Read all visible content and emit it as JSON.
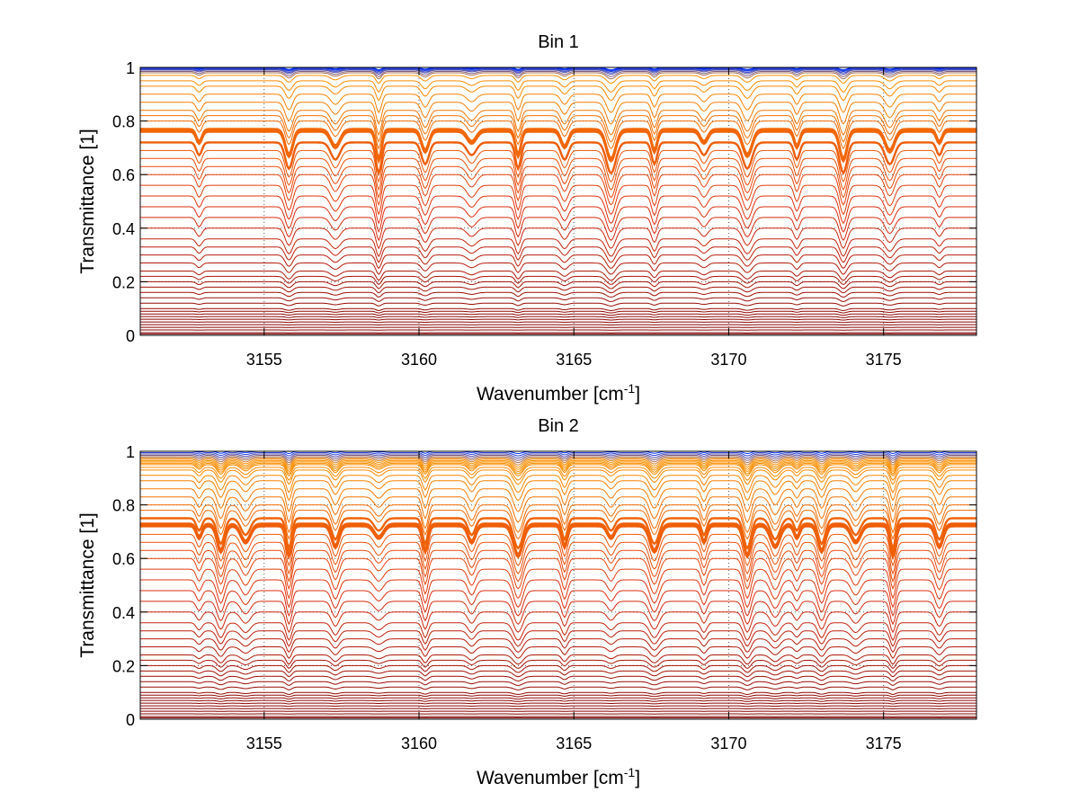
{
  "chart_data": [
    {
      "type": "line",
      "title": "Bin 1",
      "xlabel": "Wavenumber [cm",
      "xlabel_sup": "-1",
      "xlabel_end": "]",
      "ylabel": "Transmittance [1]",
      "xlim": [
        3151,
        3178
      ],
      "ylim": [
        0,
        1
      ],
      "xticks": [
        3155,
        3160,
        3165,
        3170,
        3175
      ],
      "xtick_labels": [
        "3155",
        "3160",
        "3165",
        "3170",
        "3175"
      ],
      "yticks": [
        0,
        0.2,
        0.4,
        0.6,
        0.8,
        1
      ],
      "ytick_labels": [
        "0",
        "0.2",
        "0.4",
        "0.6",
        "0.8",
        "1"
      ],
      "grid": "dotted",
      "absorption_lines": [
        3152.9,
        3155.8,
        3157.3,
        3158.7,
        3160.2,
        3161.7,
        3163.2,
        3164.7,
        3166.2,
        3167.6,
        3169.2,
        3170.6,
        3172.2,
        3173.7,
        3175.2,
        3176.8
      ],
      "series_baselines": [
        0.0,
        0.005,
        0.01,
        0.02,
        0.03,
        0.04,
        0.05,
        0.06,
        0.07,
        0.08,
        0.09,
        0.1,
        0.12,
        0.14,
        0.16,
        0.18,
        0.2,
        0.22,
        0.24,
        0.27,
        0.3,
        0.33,
        0.36,
        0.4,
        0.44,
        0.48,
        0.52,
        0.56,
        0.6,
        0.63,
        0.66,
        0.69,
        0.72,
        0.76,
        0.765,
        0.77,
        0.8,
        0.82,
        0.84,
        0.87,
        0.9,
        0.93,
        0.95,
        0.97,
        0.98,
        0.985,
        0.99,
        0.993,
        0.996,
        0.998,
        1.0
      ]
    },
    {
      "type": "line",
      "title": "Bin 2",
      "xlabel": "Wavenumber [cm",
      "xlabel_sup": "-1",
      "xlabel_end": "]",
      "ylabel": "Transmittance [1]",
      "xlim": [
        3151,
        3178
      ],
      "ylim": [
        0,
        1
      ],
      "xticks": [
        3155,
        3160,
        3165,
        3170,
        3175
      ],
      "xtick_labels": [
        "3155",
        "3160",
        "3165",
        "3170",
        "3175"
      ],
      "yticks": [
        0,
        0.2,
        0.4,
        0.6,
        0.8,
        1
      ],
      "ytick_labels": [
        "0",
        "0.2",
        "0.4",
        "0.6",
        "0.8",
        "1"
      ],
      "grid": "dotted",
      "absorption_lines": [
        3152.9,
        3153.6,
        3154.4,
        3155.8,
        3157.3,
        3158.7,
        3160.2,
        3161.7,
        3163.2,
        3164.7,
        3166.2,
        3167.6,
        3169.2,
        3170.6,
        3171.5,
        3172.2,
        3173.0,
        3174.1,
        3175.3,
        3176.8
      ],
      "series_baselines": [
        0.0,
        0.005,
        0.01,
        0.02,
        0.03,
        0.04,
        0.05,
        0.06,
        0.07,
        0.08,
        0.09,
        0.1,
        0.12,
        0.14,
        0.16,
        0.18,
        0.2,
        0.22,
        0.24,
        0.27,
        0.3,
        0.33,
        0.36,
        0.4,
        0.44,
        0.48,
        0.52,
        0.56,
        0.6,
        0.63,
        0.66,
        0.69,
        0.72,
        0.725,
        0.73,
        0.75,
        0.78,
        0.8,
        0.83,
        0.86,
        0.89,
        0.91,
        0.93,
        0.94,
        0.95,
        0.955,
        0.96,
        0.965,
        0.97,
        0.975,
        0.98,
        0.985,
        0.99,
        0.995,
        1.0
      ]
    }
  ],
  "colors": {
    "low_transmittance": "#800000",
    "mid_transmittance": "#e03010",
    "high_transmittance": "#ff9000",
    "top_curves": "#0030ff",
    "grid": "#555555",
    "axes": "#000000"
  }
}
